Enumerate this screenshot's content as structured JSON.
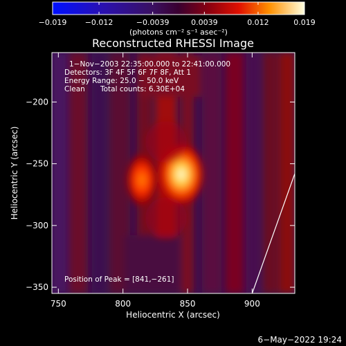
{
  "chart_data": {
    "type": "heatmap",
    "title": "Reconstructed RHESSI Image",
    "xlabel": "Heliocentric X (arcsec)",
    "ylabel": "Heliocentric Y (arcsec)",
    "xlim": [
      745,
      933
    ],
    "ylim": [
      -355,
      -160
    ],
    "x_ticks": [
      750,
      800,
      850,
      900
    ],
    "y_ticks": [
      -200,
      -250,
      -300,
      -350
    ],
    "colorbar": {
      "min": -0.019,
      "max": 0.019,
      "tick_values": [
        -0.019,
        -0.012,
        -0.0039,
        0.0039,
        0.012,
        0.019
      ],
      "tick_labels": [
        "−0.019",
        "−0.012",
        "−0.0039",
        "0.0039",
        "0.012",
        "0.019"
      ],
      "unit_label": "(photons cm⁻² s⁻¹ asec⁻²)"
    },
    "annotations": {
      "time_range": "1−Nov−2003 22:35:00.000 to 22:41:00.000",
      "detectors": "Detectors: 3F 4F 5F 6F 7F 8F, Att 1",
      "energy": "Energy Range: 25.0 − 50.0 keV",
      "method": "Clean",
      "counts": "Total counts: 6.30E+04",
      "peak": "Position of Peak = [841,−261]"
    },
    "sources": [
      {
        "x": 841,
        "y": -261,
        "value": 0.019
      },
      {
        "x": 808,
        "y": -263,
        "value": 0.011
      }
    ],
    "limb_line": [
      [
        900,
        -355
      ],
      [
        933,
        -258
      ]
    ]
  },
  "footer": {
    "date": "6−May−2022 19:24"
  }
}
